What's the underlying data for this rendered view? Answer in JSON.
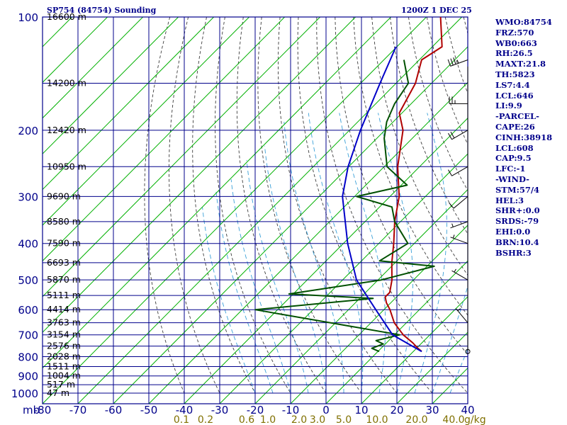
{
  "header": {
    "title": "SP754 (84754) Sounding",
    "datetime": "1200Z  1 DEC 25"
  },
  "side_panel": [
    "WMO:84754",
    "FRZ:570",
    "WB0:663",
    "RH:26.5",
    "MAXT:21.8",
    "TH:5823",
    "LS7:4.4",
    "LCL:646",
    "LI:9.9",
    "-PARCEL-",
    "CAPE:26",
    "CINH:38918",
    "LCL:608",
    "CAP:9.5",
    "LFC:-1",
    "-WIND-",
    "STM:57/4",
    "HEL:3",
    "SHR+:0.0",
    "SRDS:-79",
    "EHI:0.0",
    "BRN:10.4",
    "BSHR:3"
  ],
  "colors": {
    "grid": "#00008b",
    "isotherm": "#00b000",
    "dry_adiabat": "#3d3d3d",
    "moist_adiabat": "#3aa0d8",
    "temperature": "#b00000",
    "dewpoint": "#005000",
    "parcel": "#0000c8",
    "mixing_ratio_label": "#807000"
  },
  "chart_data": {
    "type": "line",
    "title": "SP754 (84754) Sounding",
    "xlabel": "",
    "ylabel": "mb",
    "x_ticks": [
      -80,
      -70,
      -60,
      -50,
      -40,
      -30,
      -20,
      -10,
      0,
      10,
      20,
      30,
      40
    ],
    "x_tick_labels": [
      "-80",
      "-70",
      "-60",
      "-50",
      "-40",
      "-30",
      "-20",
      "-10",
      "0",
      "10",
      "20",
      "30",
      "40"
    ],
    "pressure_ticks": [
      100,
      200,
      300,
      400,
      500,
      600,
      700,
      800,
      900,
      1000
    ],
    "pressure_axis_label": "mb",
    "x_range": [
      -80,
      40
    ],
    "pressure_range": [
      1000,
      100
    ],
    "y_scale": "log",
    "grid": true,
    "height_labels": [
      {
        "p": 100,
        "label": "16600 m"
      },
      {
        "p": 150,
        "label": "14200 m"
      },
      {
        "p": 200,
        "label": "12420 m"
      },
      {
        "p": 250,
        "label": "10950 m"
      },
      {
        "p": 300,
        "label": "9690 m"
      },
      {
        "p": 350,
        "label": "8580 m"
      },
      {
        "p": 400,
        "label": "7590 m"
      },
      {
        "p": 450,
        "label": "6693 m"
      },
      {
        "p": 500,
        "label": "5870 m"
      },
      {
        "p": 550,
        "label": "5111 m"
      },
      {
        "p": 600,
        "label": "4414 m"
      },
      {
        "p": 650,
        "label": "3763 m"
      },
      {
        "p": 700,
        "label": "3154 m"
      },
      {
        "p": 750,
        "label": "2576 m"
      },
      {
        "p": 800,
        "label": "2028 m"
      },
      {
        "p": 850,
        "label": "1511 m"
      },
      {
        "p": 900,
        "label": "1004 m"
      },
      {
        "p": 950,
        "label": "517 m"
      },
      {
        "p": 1000,
        "label": "47 m"
      }
    ],
    "mixing_ratio_labels": [
      "0.1",
      "0.2",
      "0.6",
      "1.0",
      "2.0",
      "3.0",
      "5.0",
      "10.0",
      "20.0",
      "40.0"
    ],
    "mixing_ratio_unit": "g/kg",
    "series": [
      {
        "key": "temperature",
        "points": [
          {
            "p": 775,
            "t": 15
          },
          {
            "p": 760,
            "t": 13
          },
          {
            "p": 735,
            "t": 10
          },
          {
            "p": 700,
            "t": 5
          },
          {
            "p": 650,
            "t": -1
          },
          {
            "p": 600,
            "t": -6
          },
          {
            "p": 575,
            "t": -9
          },
          {
            "p": 555,
            "t": -11
          },
          {
            "p": 540,
            "t": -11
          },
          {
            "p": 500,
            "t": -14
          },
          {
            "p": 450,
            "t": -19
          },
          {
            "p": 400,
            "t": -24
          },
          {
            "p": 350,
            "t": -30
          },
          {
            "p": 300,
            "t": -36
          },
          {
            "p": 250,
            "t": -45
          },
          {
            "p": 200,
            "t": -54
          },
          {
            "p": 180,
            "t": -60
          },
          {
            "p": 150,
            "t": -64
          },
          {
            "p": 130,
            "t": -69
          },
          {
            "p": 120,
            "t": -67
          },
          {
            "p": 100,
            "t": -76
          }
        ]
      },
      {
        "key": "dewpoint",
        "points": [
          {
            "p": 775,
            "t": 3
          },
          {
            "p": 760,
            "t": 0
          },
          {
            "p": 740,
            "t": 2
          },
          {
            "p": 725,
            "t": -1
          },
          {
            "p": 700,
            "t": 4
          },
          {
            "p": 665,
            "t": -12
          },
          {
            "p": 600,
            "t": -44
          },
          {
            "p": 560,
            "t": -14
          },
          {
            "p": 545,
            "t": -39
          },
          {
            "p": 500,
            "t": -17
          },
          {
            "p": 460,
            "t": -6
          },
          {
            "p": 445,
            "t": -23
          },
          {
            "p": 400,
            "t": -20
          },
          {
            "p": 350,
            "t": -30
          },
          {
            "p": 320,
            "t": -35
          },
          {
            "p": 300,
            "t": -48
          },
          {
            "p": 280,
            "t": -37
          },
          {
            "p": 250,
            "t": -48
          },
          {
            "p": 210,
            "t": -57
          },
          {
            "p": 190,
            "t": -61
          },
          {
            "p": 170,
            "t": -64
          },
          {
            "p": 150,
            "t": -66
          },
          {
            "p": 130,
            "t": -74
          }
        ]
      },
      {
        "key": "parcel",
        "points": [
          {
            "p": 775,
            "t": 15
          },
          {
            "p": 700,
            "t": 2
          },
          {
            "p": 600,
            "t": -10
          },
          {
            "p": 500,
            "t": -24
          },
          {
            "p": 400,
            "t": -37
          },
          {
            "p": 300,
            "t": -52
          },
          {
            "p": 250,
            "t": -59
          },
          {
            "p": 200,
            "t": -66
          },
          {
            "p": 150,
            "t": -74
          },
          {
            "p": 120,
            "t": -80
          }
        ]
      }
    ],
    "wind_barbs": [
      {
        "p": 130,
        "dir": 250,
        "kt": 35
      },
      {
        "p": 170,
        "dir": 270,
        "kt": 25
      },
      {
        "p": 200,
        "dir": 240,
        "kt": 20
      },
      {
        "p": 250,
        "dir": 240,
        "kt": 10
      },
      {
        "p": 300,
        "dir": 230,
        "kt": 10
      },
      {
        "p": 350,
        "dir": 250,
        "kt": 5
      },
      {
        "p": 400,
        "dir": 290,
        "kt": 5
      },
      {
        "p": 500,
        "dir": 300,
        "kt": 5
      },
      {
        "p": 650,
        "dir": 320,
        "kt": 5
      },
      {
        "p": 775,
        "dir": 0,
        "kt": 0
      }
    ]
  }
}
